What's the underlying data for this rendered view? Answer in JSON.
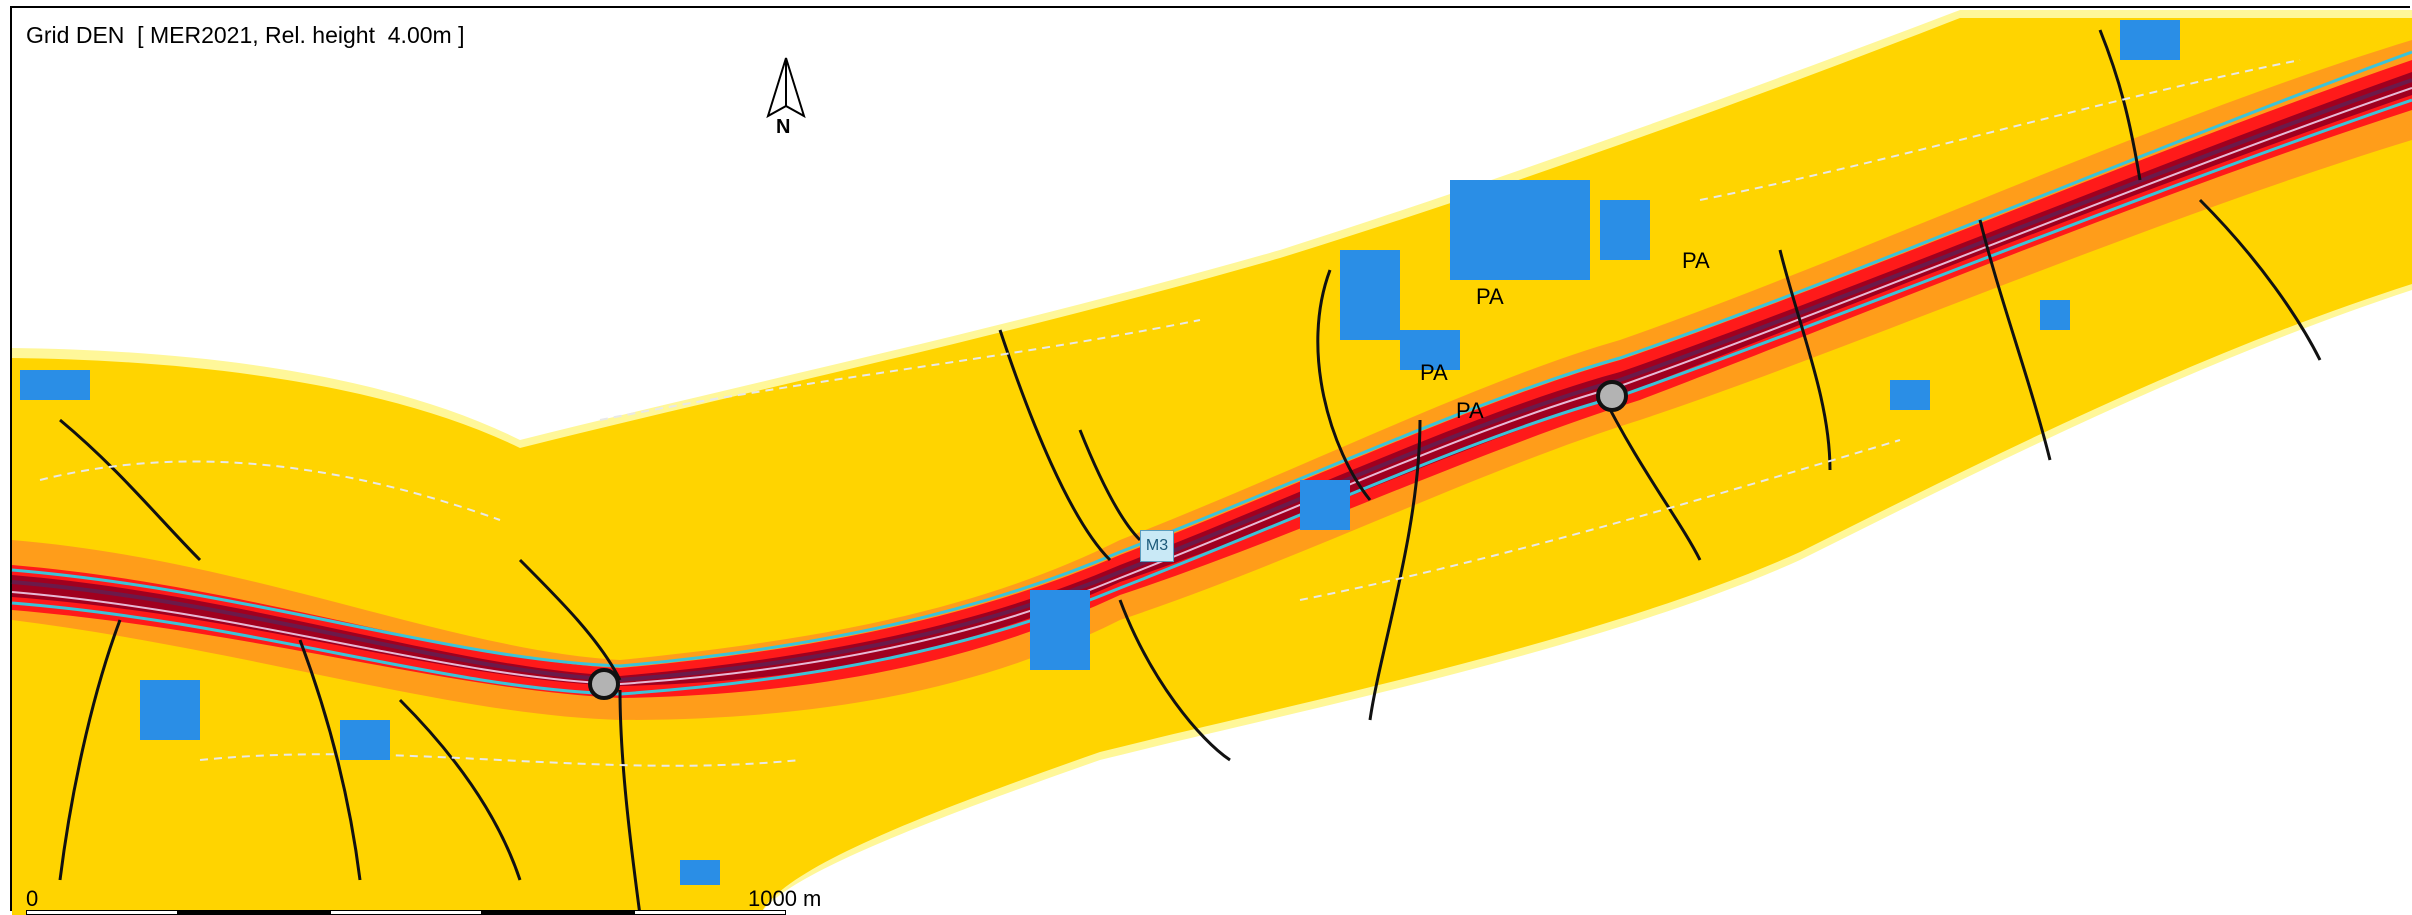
{
  "title": "Grid DEN  [ MER2021, Rel. height  4.00m ]",
  "north_label": "N",
  "scale": {
    "start": "0",
    "end": "1000 m"
  },
  "road_label": "M3",
  "place_labels": [
    "PA",
    "PA",
    "PA",
    "PA"
  ],
  "colors": {
    "background": "#ffffff",
    "zone_outer": "#fff799",
    "zone_main": "#ffd400",
    "zone_orange": "#ff9d1a",
    "zone_red": "#ff1a1a",
    "zone_darkred": "#a0001f",
    "zone_purple": "#8a1a5a",
    "road_cyan": "#3cc3d8",
    "buildings": "#2a8ee6",
    "roads": "#111111",
    "contours": "#cfcfcf"
  }
}
